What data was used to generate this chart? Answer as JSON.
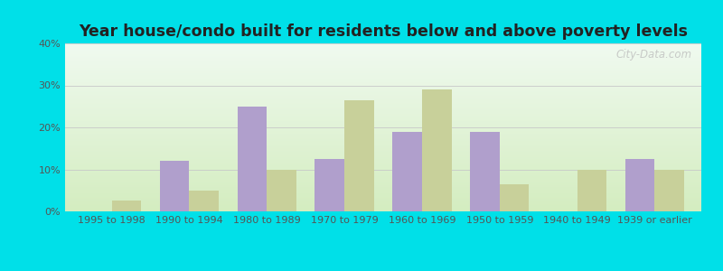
{
  "title": "Year house/condo built for residents below and above poverty levels",
  "categories": [
    "1995 to 1998",
    "1990 to 1994",
    "1980 to 1989",
    "1970 to 1979",
    "1960 to 1969",
    "1950 to 1959",
    "1940 to 1949",
    "1939 or earlier"
  ],
  "below_poverty": [
    0.0,
    12.0,
    25.0,
    12.5,
    19.0,
    19.0,
    0.0,
    12.5
  ],
  "above_poverty": [
    2.5,
    5.0,
    10.0,
    26.5,
    29.0,
    6.5,
    10.0,
    10.0
  ],
  "below_color": "#b09fcc",
  "above_color": "#c8d09a",
  "grad_top": "#f0faf0",
  "grad_bottom": "#d4edc0",
  "outer_bg": "#00e0e8",
  "ylim": [
    0,
    40
  ],
  "yticks": [
    0,
    10,
    20,
    30,
    40
  ],
  "bar_width": 0.38,
  "title_fontsize": 12.5,
  "tick_fontsize": 8,
  "legend_fontsize": 9,
  "grid_color": "#c8c8c8",
  "watermark": "City-Data.com"
}
